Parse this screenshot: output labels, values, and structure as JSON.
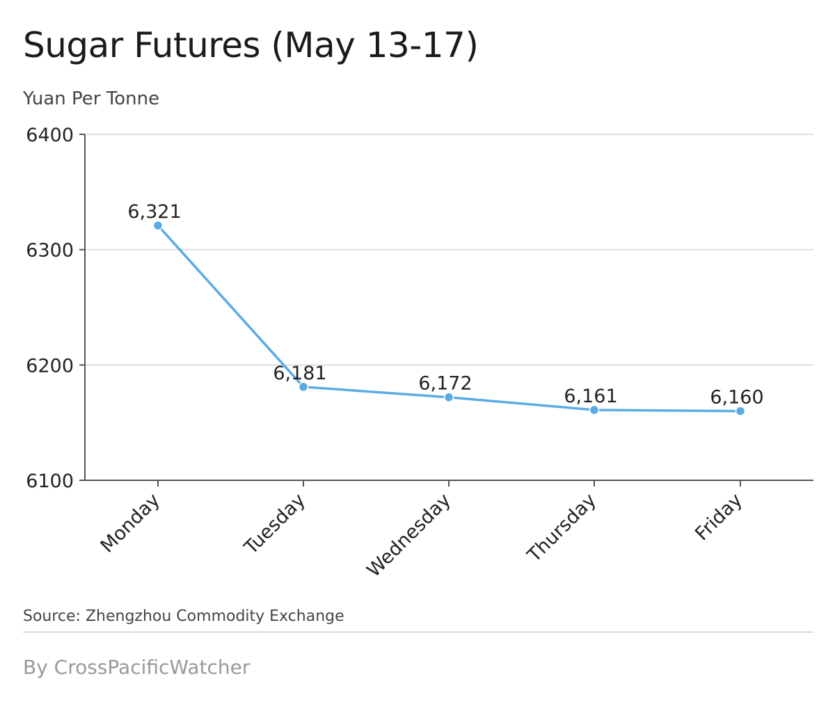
{
  "header": {
    "title": "Sugar Futures (May 13-17)",
    "subtitle": "Yuan Per Tonne"
  },
  "footer": {
    "source": "Source: Zhengzhou Commodity Exchange",
    "byline": "By CrossPacificWatcher"
  },
  "colors": {
    "line": "#5aabe4",
    "axis": "#555555",
    "grid": "#d4d4d4",
    "text": "#222222"
  },
  "chart_data": {
    "type": "line",
    "title": "Sugar Futures (May 13-17)",
    "ylabel": "Yuan Per Tonne",
    "xlabel": "",
    "categories": [
      "Monday",
      "Tuesday",
      "Wednesday",
      "Thursday",
      "Friday"
    ],
    "values": [
      6321,
      6181,
      6172,
      6161,
      6160
    ],
    "data_labels": [
      "6,321",
      "6,181",
      "6,172",
      "6,161",
      "6,160"
    ],
    "ylim": [
      6100,
      6400
    ],
    "yticks": [
      6100,
      6200,
      6300,
      6400
    ],
    "grid": true,
    "legend": "none"
  }
}
